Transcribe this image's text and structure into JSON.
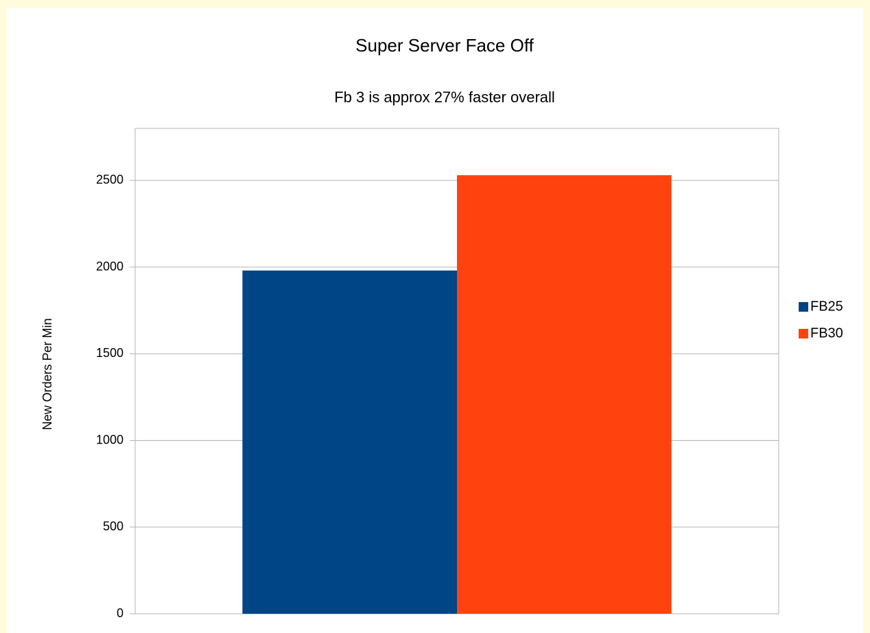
{
  "chart_data": {
    "type": "bar",
    "title": "Super Server Face Off",
    "subtitle": "Fb 3 is approx 27% faster overall",
    "y_label": "New Orders Per Min",
    "categories": [
      null
    ],
    "series": [
      {
        "name": "FB25",
        "color": "#004586",
        "values": [
          1980
        ]
      },
      {
        "name": "FB30",
        "color": "#ff420e",
        "values": [
          2530
        ]
      }
    ],
    "ylim": [
      0,
      2800
    ],
    "yticks": [
      0,
      500,
      1000,
      1500,
      2000,
      2500
    ],
    "grid": true,
    "legend": "right"
  }
}
